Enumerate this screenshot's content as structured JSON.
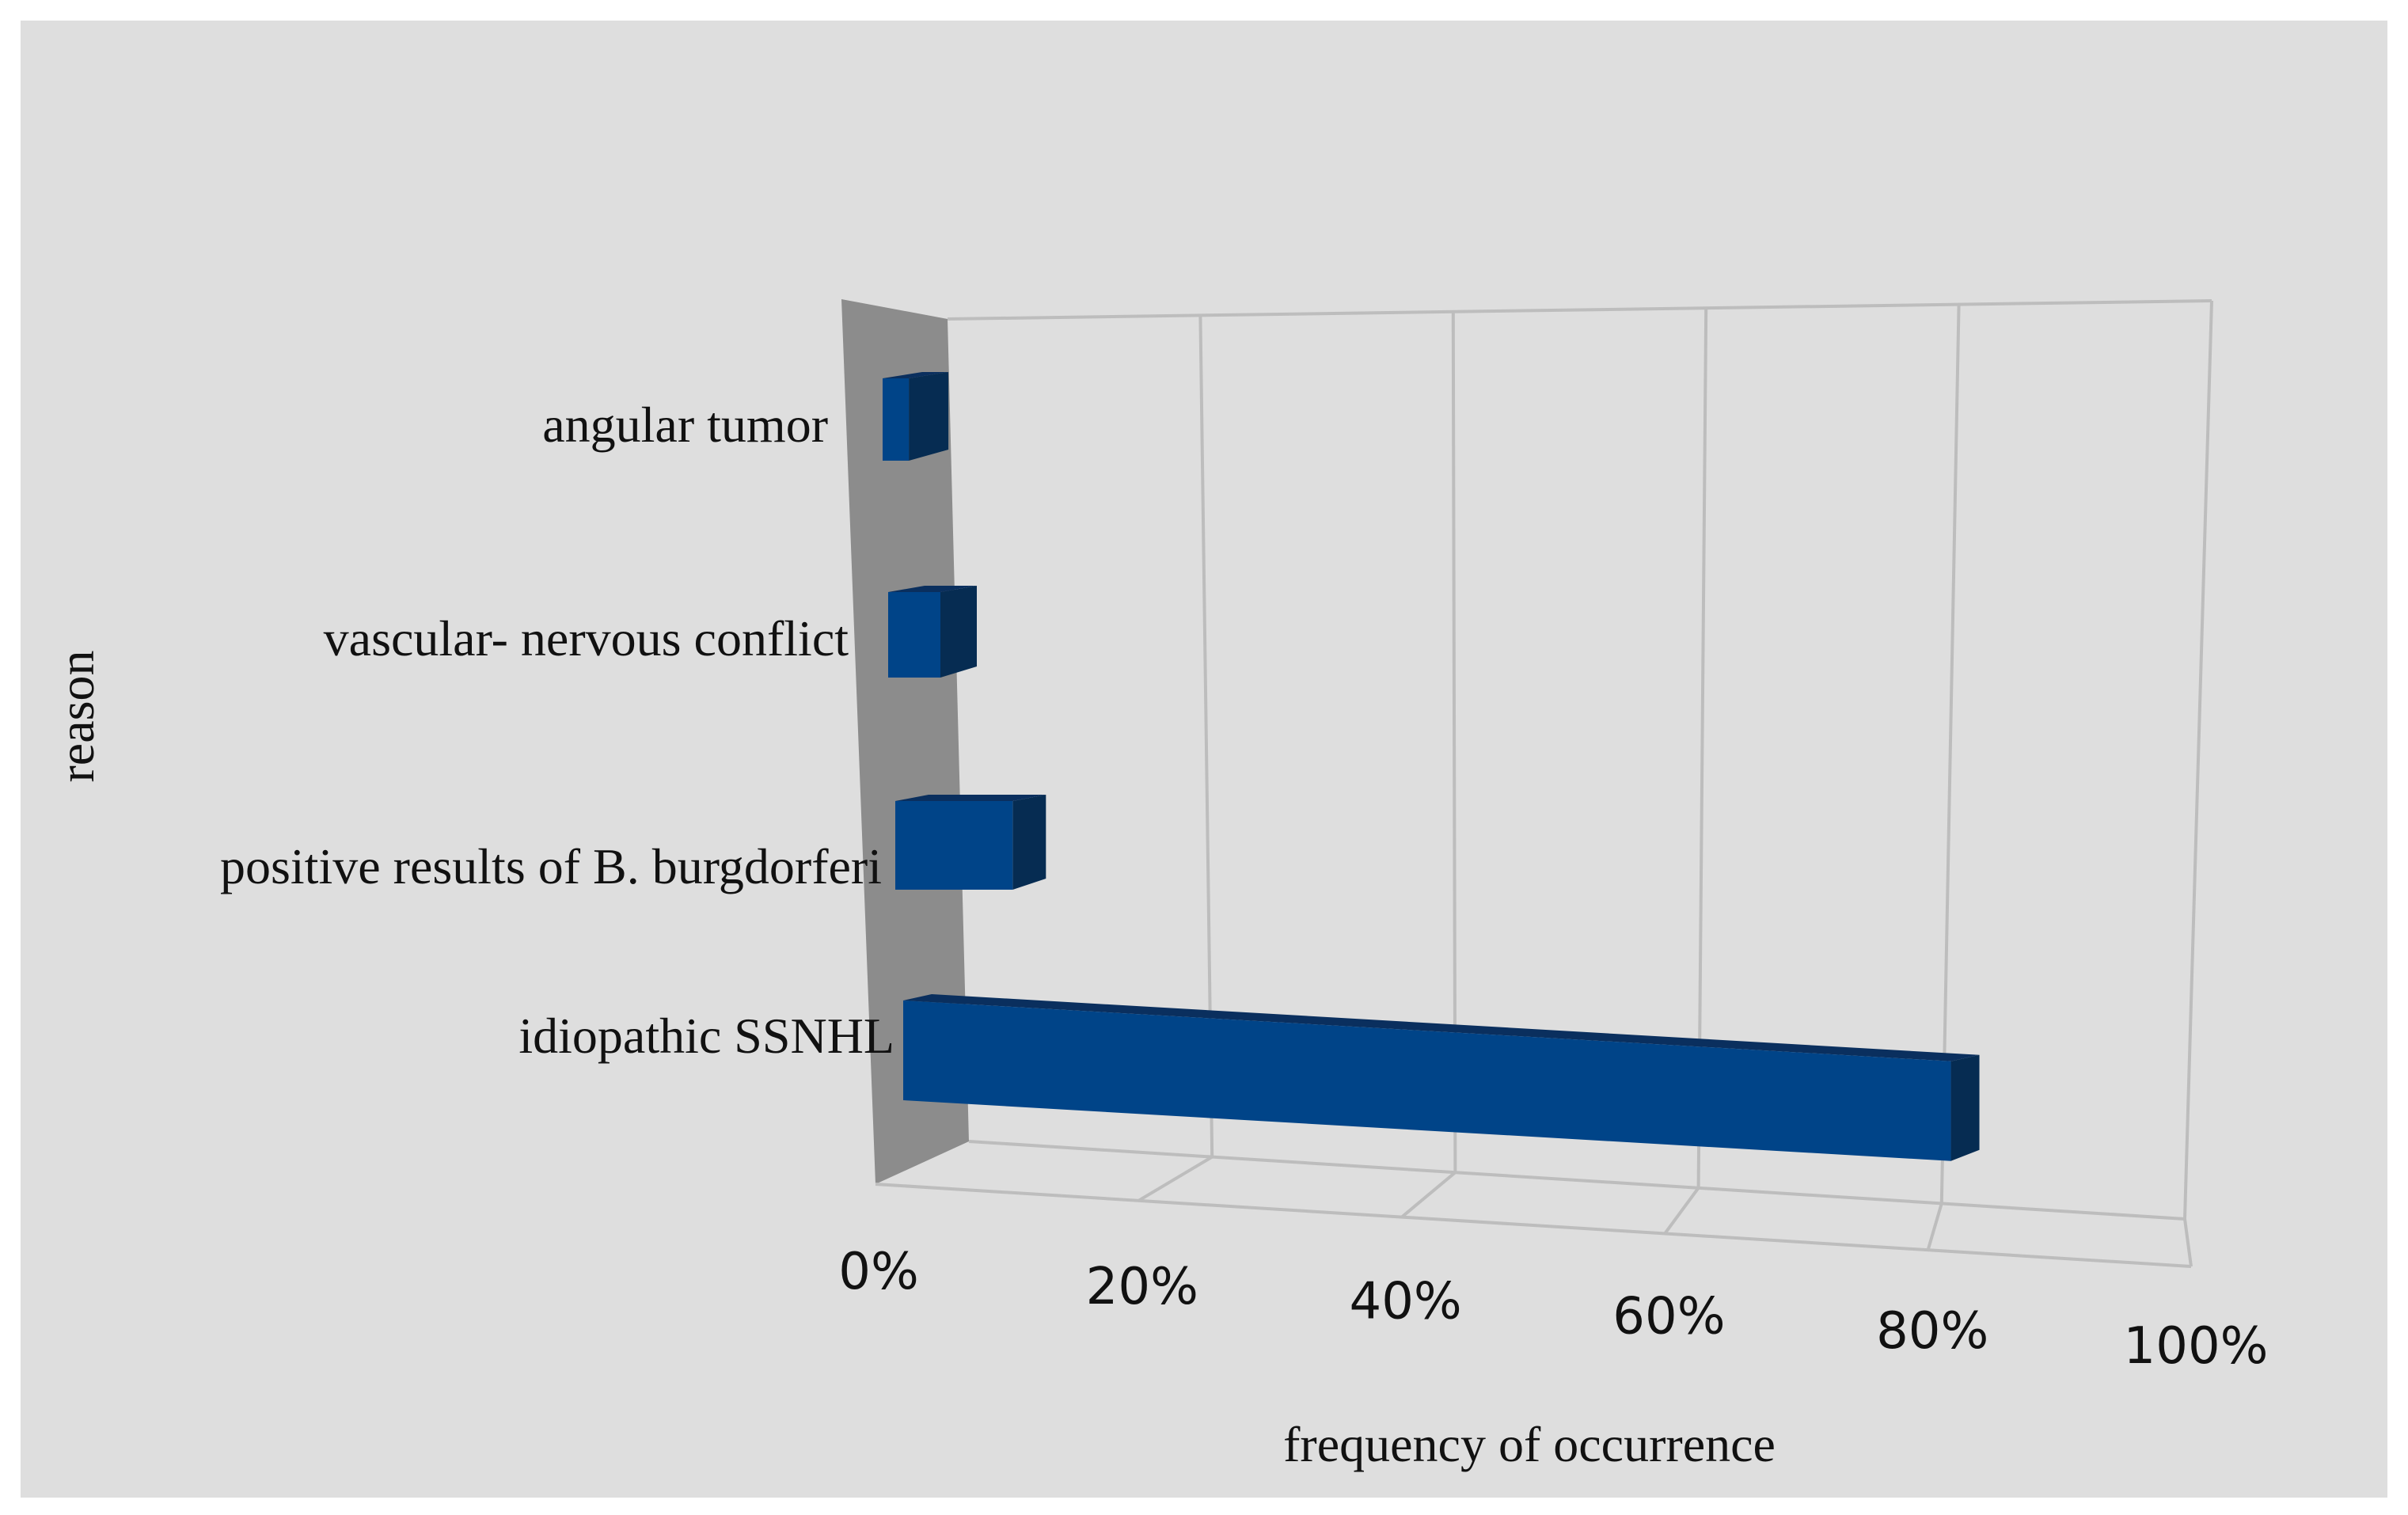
{
  "chart_data": {
    "type": "bar",
    "orientation": "horizontal",
    "style": "3d",
    "categories": [
      "angular tumor",
      "vascular- nervous conflict",
      "positive results of B. burgdorferi",
      "idiopathic SSNHL"
    ],
    "values": [
      2,
      4,
      9,
      81
    ],
    "xlabel": "frequency of occurrence",
    "ylabel": "reason",
    "xlim": [
      0,
      100
    ],
    "x_ticks": [
      "0%",
      "20%",
      "40%",
      "60%",
      "80%",
      "100%"
    ],
    "grid": true,
    "legend": "none",
    "colors": {
      "background": "#dedede",
      "bar_front": "#004488",
      "bar_top": "#0a2f5e",
      "bar_side": "#062c52",
      "side_wall": "#8c8c8c",
      "grid": "#bdbdbd"
    }
  }
}
